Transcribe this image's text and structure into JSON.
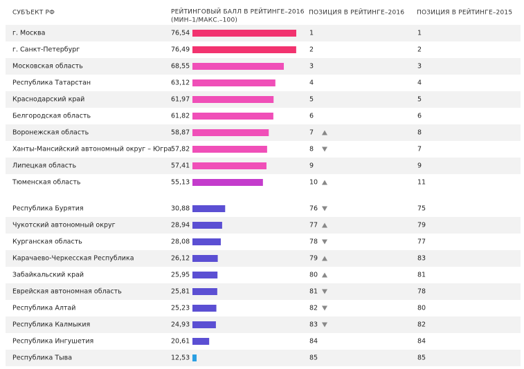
{
  "headers": {
    "region": "СУБЪЕКТ РФ",
    "score": "РЕЙТИНГОВЫЙ БАЛЛ В РЕЙТИНГЕ–2016",
    "score_note": "(МИН–1/МАКС.–100)",
    "pos2016": "ПОЗИЦИЯ В РЕЙТИНГЕ–2016",
    "pos2015": "ПОЗИЦИЯ В РЕЙТИНГЕ–2015"
  },
  "groups": [
    {
      "rows": [
        {
          "region": "г. Москва",
          "score": 76.54,
          "score_label": "76,54",
          "pos2016": 1,
          "pos2015": 1,
          "color": "#f2336f"
        },
        {
          "region": "г. Санкт-Петербург",
          "score": 76.49,
          "score_label": "76,49",
          "pos2016": 2,
          "pos2015": 2,
          "color": "#f2336f"
        },
        {
          "region": "Московская область",
          "score": 68.55,
          "score_label": "68,55",
          "pos2016": 3,
          "pos2015": 3,
          "color": "#f04fb8"
        },
        {
          "region": "Республика Татарстан",
          "score": 63.12,
          "score_label": "63,12",
          "pos2016": 4,
          "pos2015": 4,
          "color": "#f04fb8"
        },
        {
          "region": "Краснодарский край",
          "score": 61.97,
          "score_label": "61,97",
          "pos2016": 5,
          "pos2015": 5,
          "color": "#f04fb8"
        },
        {
          "region": "Белгородская область",
          "score": 61.82,
          "score_label": "61,82",
          "pos2016": 6,
          "pos2015": 6,
          "color": "#f04fb8"
        },
        {
          "region": "Воронежская область",
          "score": 58.87,
          "score_label": "58,87",
          "pos2016": 7,
          "pos2015": 8,
          "color": "#f04fb8"
        },
        {
          "region": "Ханты-Мансийский автономный округ – Югра",
          "score": 57.82,
          "score_label": "57,82",
          "pos2016": 8,
          "pos2015": 7,
          "color": "#f04fb8"
        },
        {
          "region": "Липецкая область",
          "score": 57.41,
          "score_label": "57,41",
          "pos2016": 9,
          "pos2015": 9,
          "color": "#f04fb8"
        },
        {
          "region": "Тюменская область",
          "score": 55.13,
          "score_label": "55,13",
          "pos2016": 10,
          "pos2015": 11,
          "color": "#c43ccc"
        }
      ]
    },
    {
      "rows": [
        {
          "region": "Республика Бурятия",
          "score": 30.88,
          "score_label": "30,88",
          "pos2016": 76,
          "pos2015": 75,
          "color": "#5b4fd3"
        },
        {
          "region": "Чукотский автономный округ",
          "score": 28.94,
          "score_label": "28,94",
          "pos2016": 77,
          "pos2015": 79,
          "color": "#5b4fd3"
        },
        {
          "region": "Курганская область",
          "score": 28.08,
          "score_label": "28,08",
          "pos2016": 78,
          "pos2015": 77,
          "color": "#5b4fd3"
        },
        {
          "region": "Карачаево-Черкесская Республика",
          "score": 26.12,
          "score_label": "26,12",
          "pos2016": 79,
          "pos2015": 83,
          "color": "#5b4fd3"
        },
        {
          "region": "Забайкальский край",
          "score": 25.95,
          "score_label": "25,95",
          "pos2016": 80,
          "pos2015": 81,
          "color": "#5b4fd3"
        },
        {
          "region": "Еврейская автономная область",
          "score": 25.81,
          "score_label": "25,81",
          "pos2016": 81,
          "pos2015": 78,
          "color": "#5b4fd3"
        },
        {
          "region": "Республика Алтай",
          "score": 25.23,
          "score_label": "25,23",
          "pos2016": 82,
          "pos2015": 80,
          "color": "#5b4fd3"
        },
        {
          "region": "Республика Калмыкия",
          "score": 24.93,
          "score_label": "24,93",
          "pos2016": 83,
          "pos2015": 82,
          "color": "#5b4fd3"
        },
        {
          "region": "Республика Ингушетия",
          "score": 20.61,
          "score_label": "20,61",
          "pos2016": 84,
          "pos2015": 84,
          "color": "#5b4fd3"
        },
        {
          "region": "Республика Тыва",
          "score": 12.53,
          "score_label": "12,53",
          "pos2016": 85,
          "pos2015": 85,
          "color": "#2b9fe2"
        }
      ]
    }
  ]
}
